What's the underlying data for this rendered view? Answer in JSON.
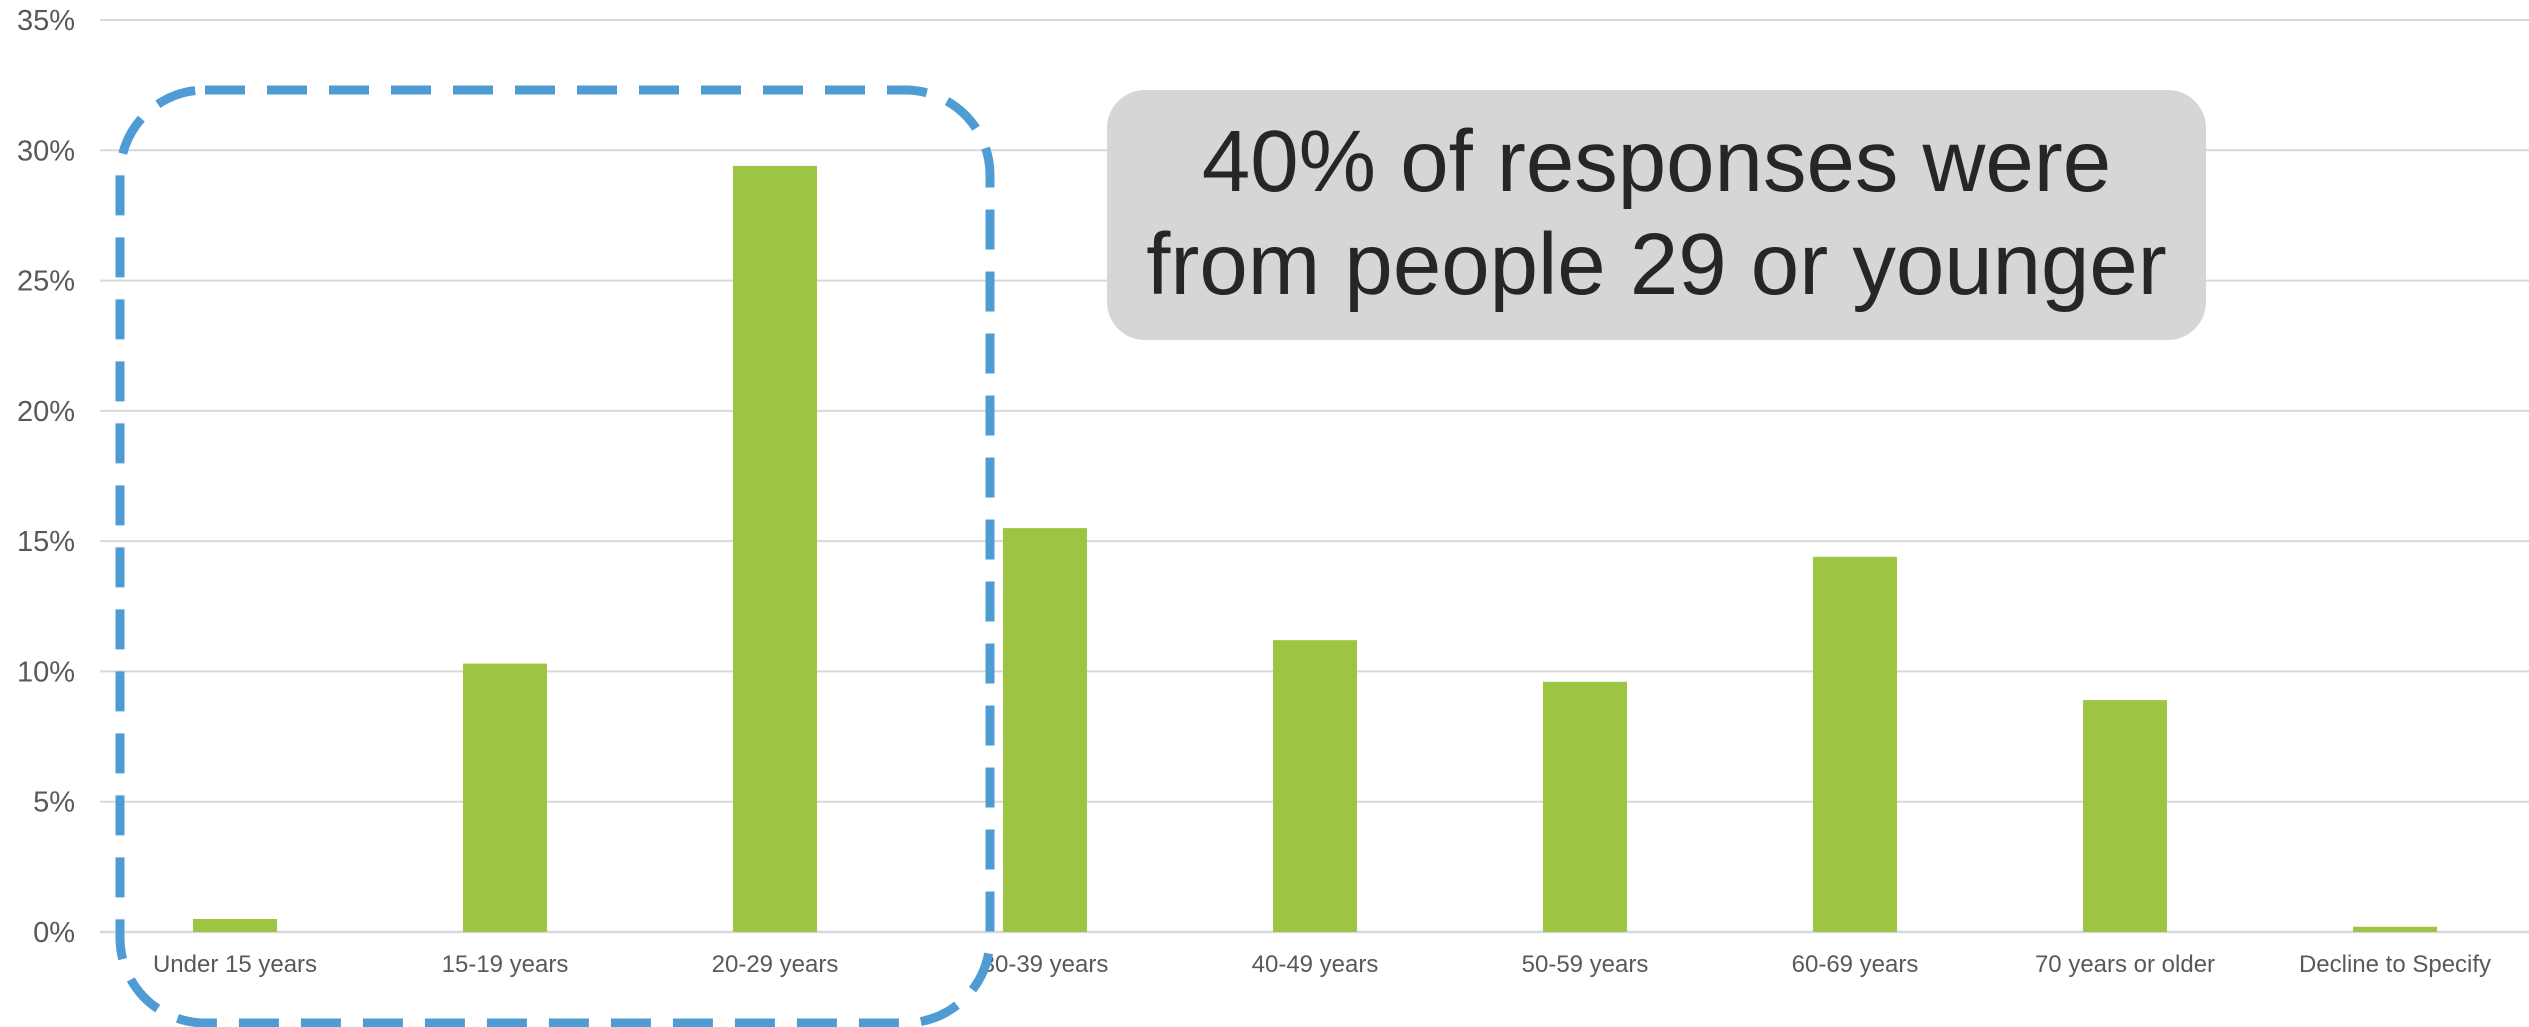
{
  "chart_data": {
    "type": "bar",
    "categories": [
      "Under 15 years",
      "15-19 years",
      "20-29 years",
      "30-39 years",
      "40-49 years",
      "50-59 years",
      "60-69 years",
      "70 years or older",
      "Decline to Specify"
    ],
    "values": [
      0.5,
      10.3,
      29.4,
      15.5,
      11.2,
      9.6,
      14.4,
      8.9,
      0.2
    ],
    "ylim": [
      0,
      35
    ],
    "yticks": [
      "0%",
      "5%",
      "10%",
      "15%",
      "20%",
      "25%",
      "30%",
      "35%"
    ],
    "title": "",
    "xlabel": "",
    "ylabel": "",
    "grid": true,
    "bar_color": "#9dc543",
    "grid_color": "#d9d9d9",
    "highlight": {
      "categories": [
        "Under 15 years",
        "15-19 years",
        "20-29 years"
      ],
      "style": "dashed rounded box",
      "color": "#4f9bd3"
    },
    "annotation": {
      "line1": "40% of responses were",
      "line2": "from people 29 or younger",
      "background": "#d6d6d6"
    }
  }
}
